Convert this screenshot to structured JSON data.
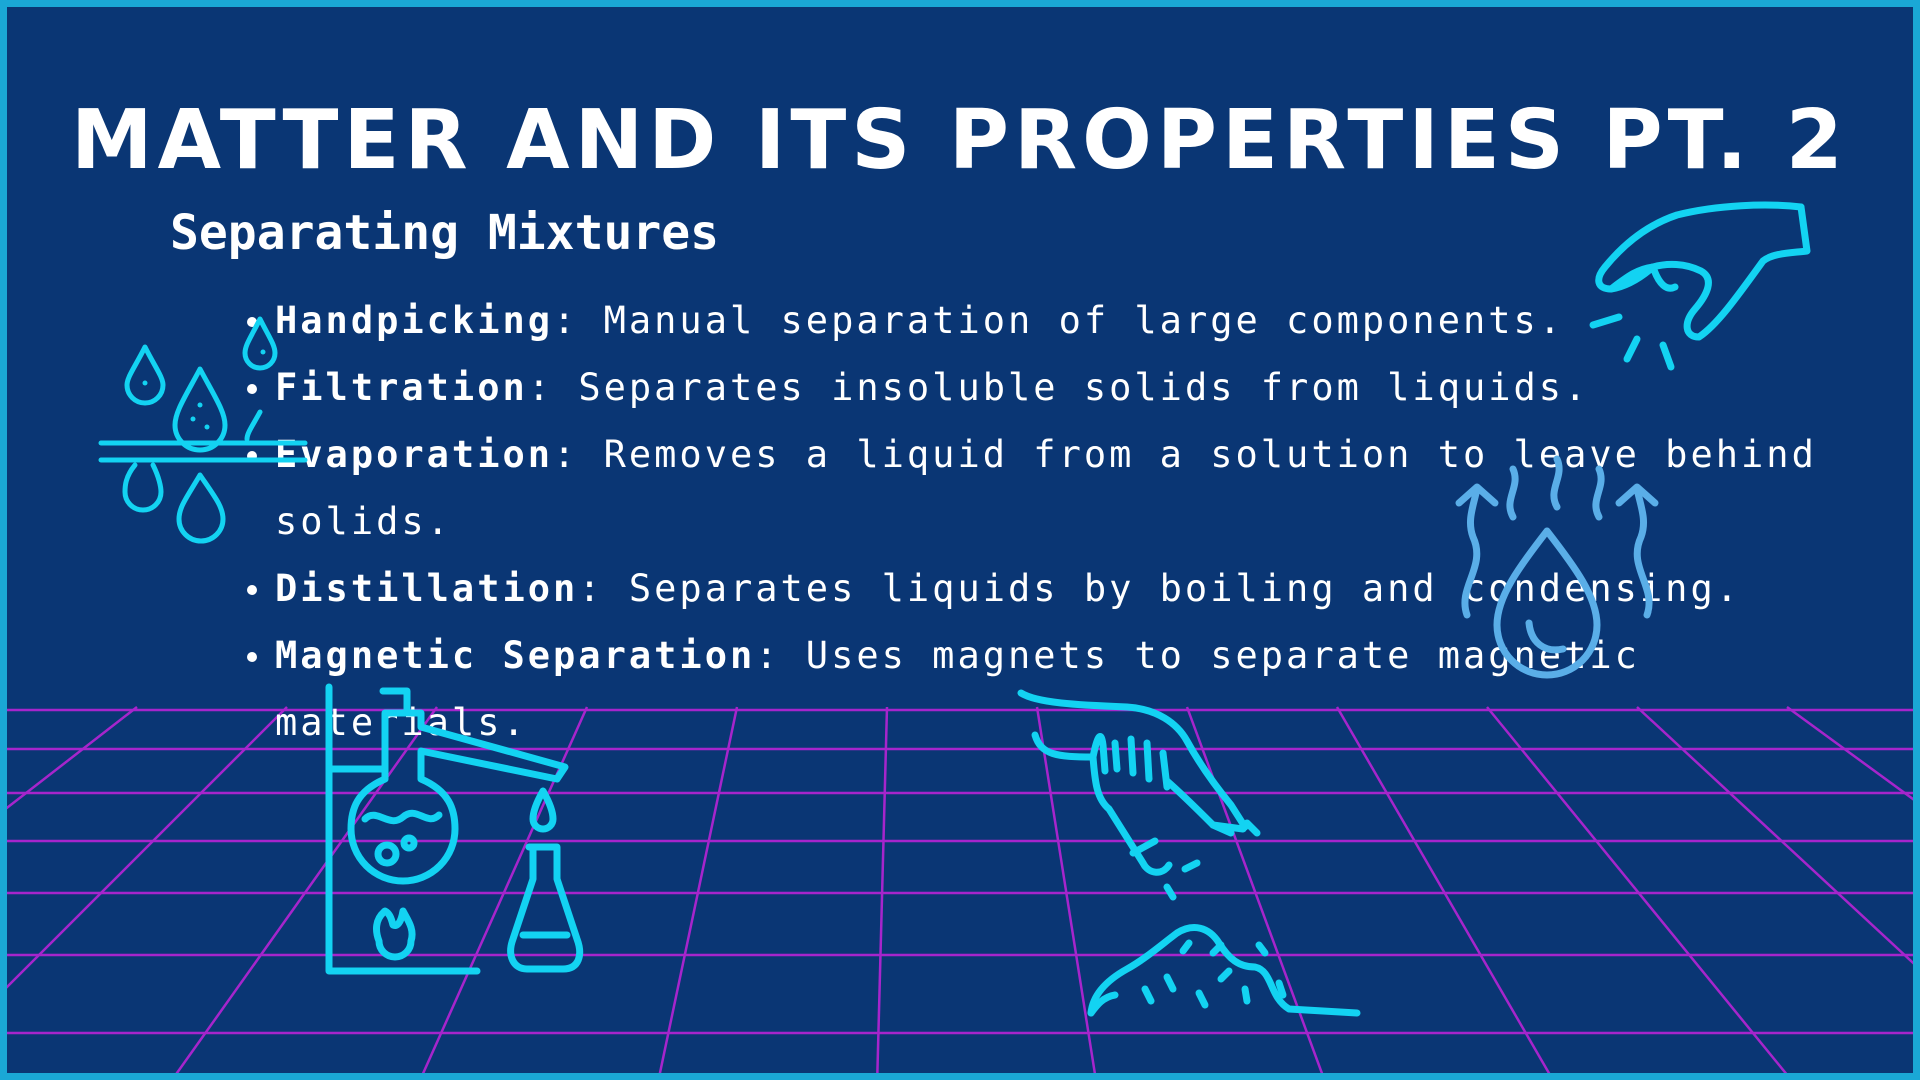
{
  "slide": {
    "title": "MATTER AND ITS PROPERTIES PT. 2",
    "subtitle": "Separating Mixtures",
    "bullets": [
      {
        "term": "Handpicking",
        "text": ": Manual separation of large components."
      },
      {
        "term": "Filtration",
        "text": ": Separates insoluble solids from liquids."
      },
      {
        "term": "Evaporation",
        "text": ": Removes a liquid from a solution to leave behind solids."
      },
      {
        "term": "Distillation",
        "text": ": Separates liquids by boiling and condensing."
      },
      {
        "term": "Magnetic Separation",
        "text": ": Uses magnets to separate magnetic materials."
      }
    ]
  },
  "icons": {
    "filtration": "filtration-drops-icon",
    "handpicking": "pinching-hand-icon",
    "evaporation": "evaporation-drop-icon",
    "distillation": "distillation-apparatus-icon",
    "sprinkle": "hand-sprinkling-soil-icon"
  },
  "colors": {
    "background": "#0a3674",
    "border": "#1aa8d6",
    "icon": "#13d3f2",
    "icon_light": "#5aaee8",
    "grid": "#b724d6",
    "text": "#ffffff"
  }
}
